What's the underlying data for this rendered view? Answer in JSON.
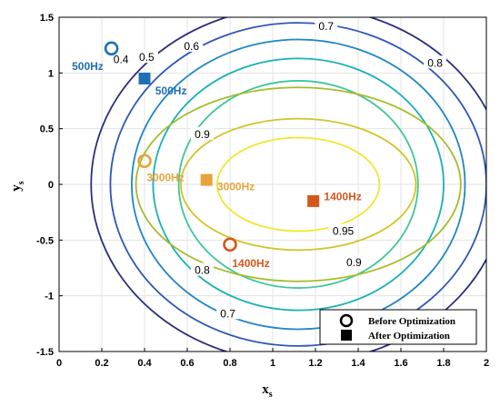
{
  "chart_data": {
    "type": "contour",
    "xlabel": "x",
    "xlabel_sub": "s",
    "ylabel": "y",
    "ylabel_sub": "s",
    "xlim": [
      0,
      2
    ],
    "ylim": [
      -1.5,
      1.5
    ],
    "xticks": [
      "0",
      "0.2",
      "0.4",
      "0.6",
      "0.8",
      "1",
      "1.2",
      "1.4",
      "1.6",
      "1.8",
      "2"
    ],
    "yticks": [
      "1.5",
      "1",
      "0.5",
      "0",
      "-0.5",
      "-1",
      "-1.5"
    ],
    "grid": true,
    "contour_levels": [
      {
        "level": 0.3,
        "label": "",
        "color": "#2c2d7e",
        "center_x": 1.12,
        "a": 0.97,
        "b": 1.6
      },
      {
        "level": 0.4,
        "label": "0.4",
        "color": "#2f56b8",
        "center_x": 1.12,
        "a": 0.88,
        "b": 1.45
      },
      {
        "level": 0.5,
        "label": "0.5",
        "color": "#1f86c8",
        "center_x": 1.12,
        "a": 0.78,
        "b": 1.3
      },
      {
        "level": 0.6,
        "label": "0.6",
        "color": "#19b0b6",
        "center_x": 1.12,
        "a": 0.68,
        "b": 1.13
      },
      {
        "level": 0.7,
        "label": "0.7",
        "color": "#3ec698",
        "center_x": 1.12,
        "a": 0.56,
        "b": 0.93
      },
      {
        "level": 0.8,
        "label": "0.8",
        "color": "#a6bc28",
        "center_x": 1.12,
        "a": 0.76,
        "b": 0.87
      },
      {
        "level": 0.9,
        "label": "0.9",
        "color": "#d2c427",
        "center_x": 1.12,
        "a": 0.55,
        "b": 0.59
      },
      {
        "level": 0.95,
        "label": "0.95",
        "color": "#f4e52c",
        "center_x": 1.12,
        "a": 0.38,
        "b": 0.42
      }
    ],
    "contour_label_positions": [
      {
        "label": "0.4",
        "x": 0.29,
        "y": 1.12
      },
      {
        "label": "0.5",
        "x": 0.41,
        "y": 1.14
      },
      {
        "label": "0.6",
        "x": 0.62,
        "y": 1.24
      },
      {
        "label": "0.7",
        "x": 1.25,
        "y": 1.42
      },
      {
        "label": "0.8",
        "x": 1.76,
        "y": 1.09
      },
      {
        "label": "0.9",
        "x": 0.67,
        "y": 0.45
      },
      {
        "label": "0.95",
        "x": 1.33,
        "y": -0.42
      },
      {
        "label": "0.9",
        "x": 1.38,
        "y": -0.7
      },
      {
        "label": "0.8",
        "x": 0.67,
        "y": -0.77
      },
      {
        "label": "0.7",
        "x": 0.79,
        "y": -1.16
      }
    ],
    "points": [
      {
        "name": "500Hz",
        "state": "before",
        "x": 0.245,
        "y": 1.22,
        "color": "#1f6fb7",
        "label_x": 0.06,
        "label_y": 1.06
      },
      {
        "name": "500Hz",
        "state": "after",
        "x": 0.4,
        "y": 0.95,
        "color": "#1f6fb7",
        "label_x": 0.45,
        "label_y": 0.84
      },
      {
        "name": "3000Hz",
        "state": "before",
        "x": 0.4,
        "y": 0.21,
        "color": "#e8a33a",
        "label_x": 0.41,
        "label_y": 0.06
      },
      {
        "name": "3000Hz",
        "state": "after",
        "x": 0.69,
        "y": 0.04,
        "color": "#e8a33a",
        "label_x": 0.74,
        "label_y": -0.02
      },
      {
        "name": "1400Hz",
        "state": "before",
        "x": 0.8,
        "y": -0.54,
        "color": "#d4581b",
        "label_x": 0.81,
        "label_y": -0.71
      },
      {
        "name": "1400Hz",
        "state": "after",
        "x": 1.19,
        "y": -0.15,
        "color": "#d4581b",
        "label_x": 1.24,
        "label_y": -0.11
      }
    ],
    "legend": {
      "position": "bottom-right",
      "entries": [
        {
          "marker": "circle-open",
          "label": "Before Optimization"
        },
        {
          "marker": "square-filled",
          "label": "After Optimization"
        }
      ]
    }
  }
}
